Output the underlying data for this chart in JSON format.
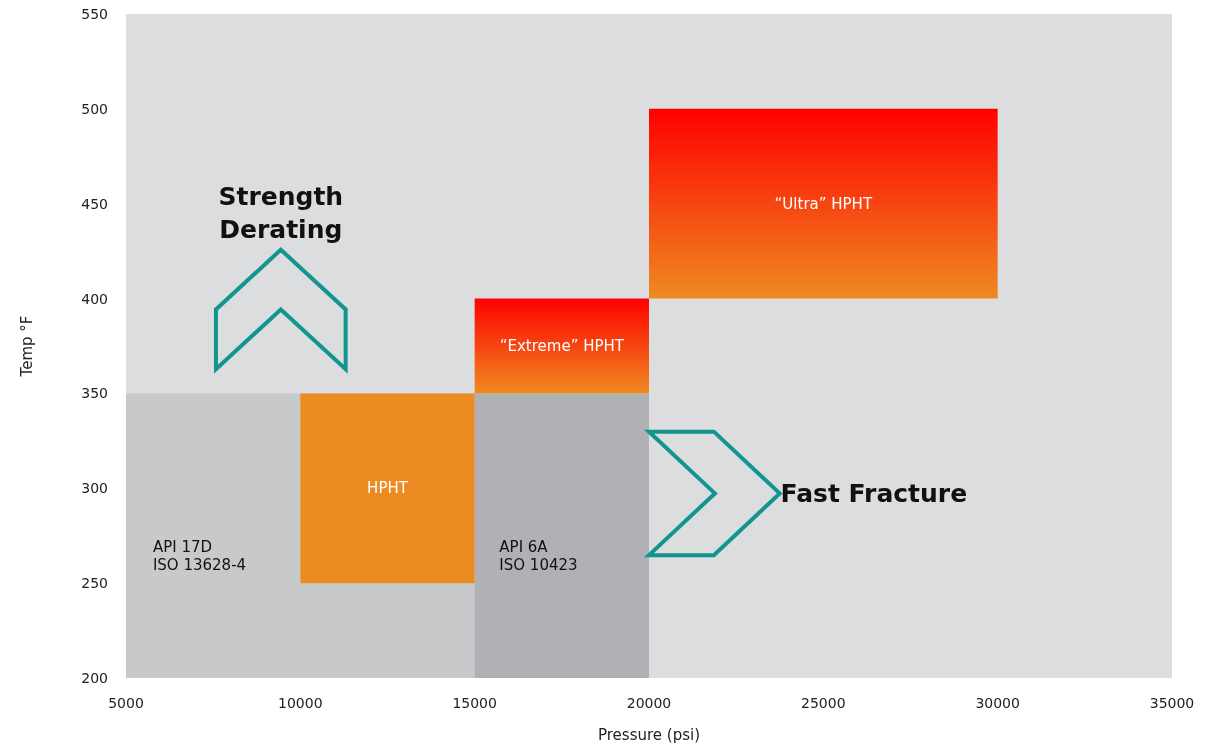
{
  "chart_data": {
    "type": "area",
    "xlabel": "Pressure (psi)",
    "ylabel": "Temp °F",
    "xlim": [
      5000,
      35000
    ],
    "xticks": [
      5000,
      10000,
      15000,
      20000,
      25000,
      30000,
      35000
    ],
    "ylim": [
      200,
      550
    ],
    "yticks": [
      200,
      250,
      300,
      350,
      400,
      450,
      500,
      550
    ],
    "grid": false,
    "series": [
      {
        "name": "API 17D\nISO 13628-4",
        "x": [
          5000,
          5000,
          15000,
          15000
        ],
        "values": [
          200,
          350,
          350,
          200
        ],
        "color": "#c8c9cb"
      },
      {
        "name": "API 6A\nISO 10423",
        "x": [
          15000,
          15000,
          20000,
          20000
        ],
        "values": [
          200,
          350,
          350,
          200
        ],
        "color": "#b0b1b4"
      },
      {
        "name": "HPHT",
        "x": [
          10000,
          10000,
          15000,
          15000
        ],
        "values": [
          250,
          350,
          350,
          250
        ],
        "color": "#ec8b22"
      },
      {
        "name": "“Extreme” HPHT",
        "x": [
          15000,
          15000,
          20000,
          20000
        ],
        "values": [
          350,
          400,
          400,
          350
        ],
        "colors": [
          "#ee8a22",
          "#ff0000",
          "#ff0000",
          "#ee8a22"
        ]
      },
      {
        "name": "“Ultra” HPHT",
        "x": [
          20000,
          20000,
          30000,
          30000
        ],
        "values": [
          400,
          500,
          500,
          400
        ],
        "colors": [
          "#ee8a22",
          "#ff0000",
          "#ff0000",
          "#ee8a22"
        ]
      }
    ],
    "annotations": [
      "Strength\nDerating",
      "Fast Fracture"
    ]
  }
}
